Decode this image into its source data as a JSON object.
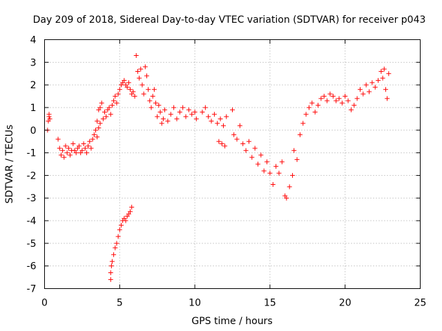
{
  "chart_data": {
    "type": "scatter",
    "title": "Day 209 of 2018, Sidereal Day-to-day VTEC variation (SDTVAR) for receiver p043",
    "xlabel": "GPS time / hours",
    "ylabel": "SDTVAR / TECUs",
    "xlim": [
      0,
      25
    ],
    "ylim": [
      -7,
      4
    ],
    "xticks": [
      0,
      5,
      10,
      15,
      20,
      25
    ],
    "yticks": [
      -7,
      -6,
      -5,
      -4,
      -3,
      -2,
      -1,
      0,
      1,
      2,
      3,
      4
    ],
    "grid": true,
    "marker": "plus",
    "color": "#ff0000",
    "series": [
      {
        "name": "SDTVAR",
        "points": [
          [
            0.2,
            0.0
          ],
          [
            0.25,
            0.4
          ],
          [
            0.3,
            0.6
          ],
          [
            0.35,
            0.5
          ],
          [
            0.3,
            0.7
          ],
          [
            0.9,
            -0.4
          ],
          [
            1.0,
            -0.8
          ],
          [
            1.1,
            -1.1
          ],
          [
            1.2,
            -0.9
          ],
          [
            1.3,
            -1.2
          ],
          [
            1.4,
            -0.7
          ],
          [
            1.5,
            -1.0
          ],
          [
            1.6,
            -0.8
          ],
          [
            1.7,
            -1.1
          ],
          [
            1.8,
            -0.9
          ],
          [
            1.9,
            -0.6
          ],
          [
            2.0,
            -0.9
          ],
          [
            2.1,
            -1.0
          ],
          [
            2.2,
            -0.8
          ],
          [
            2.3,
            -0.7
          ],
          [
            2.4,
            -1.0
          ],
          [
            2.5,
            -0.9
          ],
          [
            2.6,
            -0.6
          ],
          [
            2.7,
            -0.8
          ],
          [
            2.8,
            -1.0
          ],
          [
            2.9,
            -0.7
          ],
          [
            3.0,
            -0.5
          ],
          [
            3.1,
            -0.8
          ],
          [
            3.2,
            -0.4
          ],
          [
            3.3,
            -0.2
          ],
          [
            3.4,
            0.0
          ],
          [
            3.5,
            -0.3
          ],
          [
            3.6,
            0.1
          ],
          [
            3.5,
            0.4
          ],
          [
            3.7,
            0.3
          ],
          [
            3.6,
            0.9
          ],
          [
            3.8,
            1.2
          ],
          [
            3.7,
            1.0
          ],
          [
            3.9,
            0.5
          ],
          [
            4.0,
            0.8
          ],
          [
            4.1,
            0.6
          ],
          [
            4.2,
            0.9
          ],
          [
            4.3,
            1.0
          ],
          [
            4.4,
            0.7
          ],
          [
            4.5,
            1.1
          ],
          [
            4.6,
            1.3
          ],
          [
            4.7,
            1.5
          ],
          [
            4.8,
            1.2
          ],
          [
            4.9,
            1.6
          ],
          [
            5.0,
            1.8
          ],
          [
            5.1,
            2.0
          ],
          [
            5.2,
            2.1
          ],
          [
            5.3,
            2.2
          ],
          [
            5.4,
            2.0
          ],
          [
            5.5,
            1.9
          ],
          [
            5.6,
            2.1
          ],
          [
            5.7,
            1.8
          ],
          [
            5.8,
            1.6
          ],
          [
            5.9,
            1.7
          ],
          [
            6.0,
            1.5
          ],
          [
            6.1,
            3.3
          ],
          [
            6.2,
            2.6
          ],
          [
            6.3,
            2.3
          ],
          [
            6.4,
            2.7
          ],
          [
            6.5,
            2.0
          ],
          [
            6.6,
            1.6
          ],
          [
            6.7,
            2.8
          ],
          [
            6.8,
            2.4
          ],
          [
            6.9,
            1.8
          ],
          [
            7.0,
            1.3
          ],
          [
            7.1,
            1.0
          ],
          [
            7.2,
            1.5
          ],
          [
            7.3,
            1.8
          ],
          [
            7.4,
            1.2
          ],
          [
            7.5,
            0.6
          ],
          [
            7.6,
            1.1
          ],
          [
            7.7,
            0.8
          ],
          [
            7.8,
            0.3
          ],
          [
            7.9,
            0.5
          ],
          [
            8.0,
            0.9
          ],
          [
            8.2,
            0.4
          ],
          [
            8.4,
            0.7
          ],
          [
            8.6,
            1.0
          ],
          [
            8.8,
            0.5
          ],
          [
            9.0,
            0.8
          ],
          [
            9.2,
            1.0
          ],
          [
            9.4,
            0.6
          ],
          [
            9.6,
            0.9
          ],
          [
            9.8,
            0.7
          ],
          [
            10.0,
            0.8
          ],
          [
            10.1,
            0.5
          ],
          [
            10.5,
            0.8
          ],
          [
            10.7,
            1.0
          ],
          [
            10.9,
            0.6
          ],
          [
            11.1,
            0.4
          ],
          [
            11.3,
            0.7
          ],
          [
            11.5,
            0.3
          ],
          [
            11.7,
            0.5
          ],
          [
            11.9,
            0.2
          ],
          [
            12.1,
            0.6
          ],
          [
            11.6,
            -0.5
          ],
          [
            11.8,
            -0.6
          ],
          [
            12.0,
            -0.7
          ],
          [
            12.5,
            0.9
          ],
          [
            12.6,
            -0.2
          ],
          [
            12.8,
            -0.4
          ],
          [
            13.0,
            0.2
          ],
          [
            13.2,
            -0.6
          ],
          [
            13.4,
            -0.9
          ],
          [
            13.6,
            -0.5
          ],
          [
            13.8,
            -1.2
          ],
          [
            14.0,
            -0.8
          ],
          [
            14.2,
            -1.5
          ],
          [
            14.4,
            -1.1
          ],
          [
            14.6,
            -1.8
          ],
          [
            14.8,
            -1.4
          ],
          [
            15.0,
            -1.9
          ],
          [
            15.2,
            -2.4
          ],
          [
            15.4,
            -1.6
          ],
          [
            15.6,
            -1.9
          ],
          [
            15.8,
            -1.4
          ],
          [
            16.0,
            -2.9
          ],
          [
            16.1,
            -3.0
          ],
          [
            16.3,
            -2.5
          ],
          [
            16.5,
            -2.0
          ],
          [
            16.6,
            -0.9
          ],
          [
            16.8,
            -1.3
          ],
          [
            17.0,
            -0.2
          ],
          [
            17.2,
            0.3
          ],
          [
            17.4,
            0.7
          ],
          [
            17.6,
            1.0
          ],
          [
            17.8,
            1.2
          ],
          [
            18.0,
            0.8
          ],
          [
            18.2,
            1.1
          ],
          [
            18.4,
            1.4
          ],
          [
            18.6,
            1.5
          ],
          [
            18.8,
            1.3
          ],
          [
            19.0,
            1.6
          ],
          [
            19.2,
            1.5
          ],
          [
            19.4,
            1.3
          ],
          [
            19.6,
            1.4
          ],
          [
            19.8,
            1.2
          ],
          [
            20.0,
            1.5
          ],
          [
            20.2,
            1.3
          ],
          [
            20.4,
            0.9
          ],
          [
            20.6,
            1.1
          ],
          [
            20.8,
            1.4
          ],
          [
            21.0,
            1.8
          ],
          [
            21.2,
            1.6
          ],
          [
            21.4,
            2.0
          ],
          [
            21.6,
            1.7
          ],
          [
            21.8,
            2.1
          ],
          [
            22.0,
            1.9
          ],
          [
            22.2,
            2.2
          ],
          [
            22.4,
            2.6
          ],
          [
            22.5,
            2.3
          ],
          [
            22.6,
            2.7
          ],
          [
            22.7,
            1.8
          ],
          [
            22.8,
            1.4
          ],
          [
            22.9,
            2.5
          ],
          [
            4.4,
            -6.6
          ],
          [
            4.4,
            -6.3
          ],
          [
            4.45,
            -6.0
          ],
          [
            4.5,
            -5.8
          ],
          [
            4.6,
            -5.5
          ],
          [
            4.7,
            -5.2
          ],
          [
            4.8,
            -5.0
          ],
          [
            4.9,
            -4.7
          ],
          [
            5.0,
            -4.4
          ],
          [
            5.1,
            -4.2
          ],
          [
            5.2,
            -4.0
          ],
          [
            5.3,
            -3.9
          ],
          [
            5.4,
            -4.0
          ],
          [
            5.5,
            -3.8
          ],
          [
            5.6,
            -3.7
          ],
          [
            5.7,
            -3.6
          ],
          [
            5.8,
            -3.4
          ]
        ]
      }
    ]
  }
}
